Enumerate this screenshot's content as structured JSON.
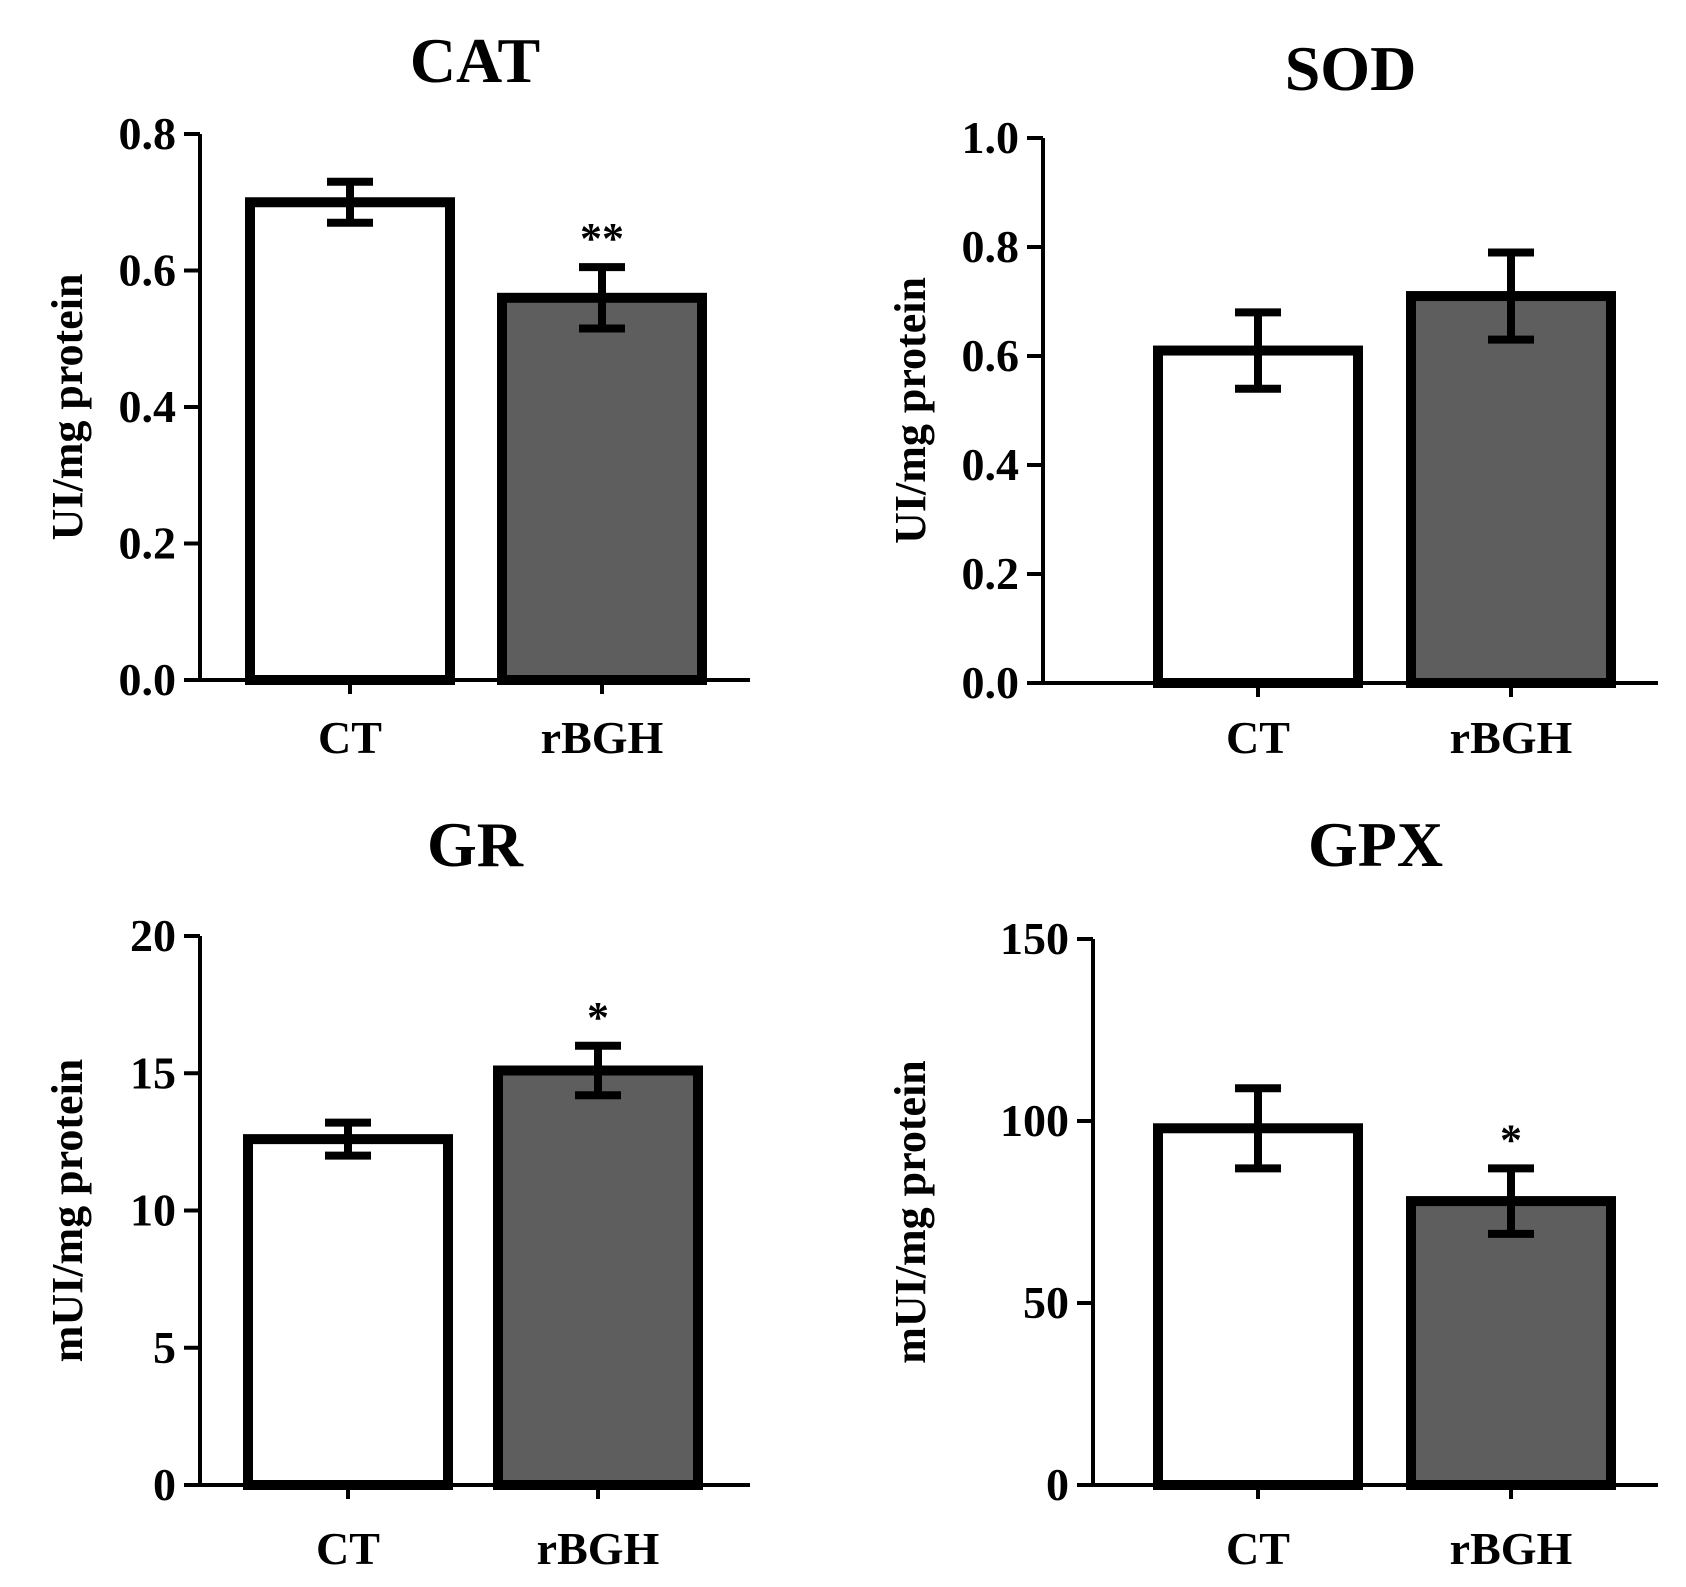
{
  "colors": {
    "ct_fill": "#ffffff",
    "rbgh_fill": "#5e5e5e",
    "stroke": "#000000"
  },
  "chart_data": [
    {
      "type": "bar",
      "title": "CAT",
      "ylabel": "UI/mg protein",
      "categories": [
        "CT",
        "rBGH"
      ],
      "values": [
        0.7,
        0.56
      ],
      "errors": [
        0.03,
        0.045
      ],
      "significance": [
        "",
        "**"
      ],
      "ylim": [
        0,
        0.8
      ],
      "ticks": [
        0.0,
        0.2,
        0.4,
        0.6,
        0.8
      ],
      "tick_labels": [
        "0.0",
        "0.2",
        "0.4",
        "0.6",
        "0.8"
      ]
    },
    {
      "type": "bar",
      "title": "SOD",
      "ylabel": "UI/mg protein",
      "categories": [
        "CT",
        "rBGH"
      ],
      "values": [
        0.61,
        0.71
      ],
      "errors": [
        0.07,
        0.08
      ],
      "significance": [
        "",
        ""
      ],
      "ylim": [
        0,
        1.0
      ],
      "ticks": [
        0.0,
        0.2,
        0.4,
        0.6,
        0.8,
        1.0
      ],
      "tick_labels": [
        "0.0",
        "0.2",
        "0.4",
        "0.6",
        "0.8",
        "1.0"
      ]
    },
    {
      "type": "bar",
      "title": "GR",
      "ylabel": "mUI/mg protein",
      "categories": [
        "CT",
        "rBGH"
      ],
      "values": [
        12.6,
        15.1
      ],
      "errors": [
        0.6,
        0.9
      ],
      "significance": [
        "",
        "*"
      ],
      "ylim": [
        0,
        20
      ],
      "ticks": [
        0,
        5,
        10,
        15,
        20
      ],
      "tick_labels": [
        "0",
        "5",
        "10",
        "15",
        "20"
      ]
    },
    {
      "type": "bar",
      "title": "GPX",
      "ylabel": "mUI/mg protein",
      "categories": [
        "CT",
        "rBGH"
      ],
      "values": [
        98,
        78
      ],
      "errors": [
        11,
        9
      ],
      "significance": [
        "",
        "*"
      ],
      "ylim": [
        0,
        150
      ],
      "ticks": [
        0,
        50,
        100,
        150
      ],
      "tick_labels": [
        "0",
        "50",
        "100",
        "150"
      ]
    }
  ]
}
